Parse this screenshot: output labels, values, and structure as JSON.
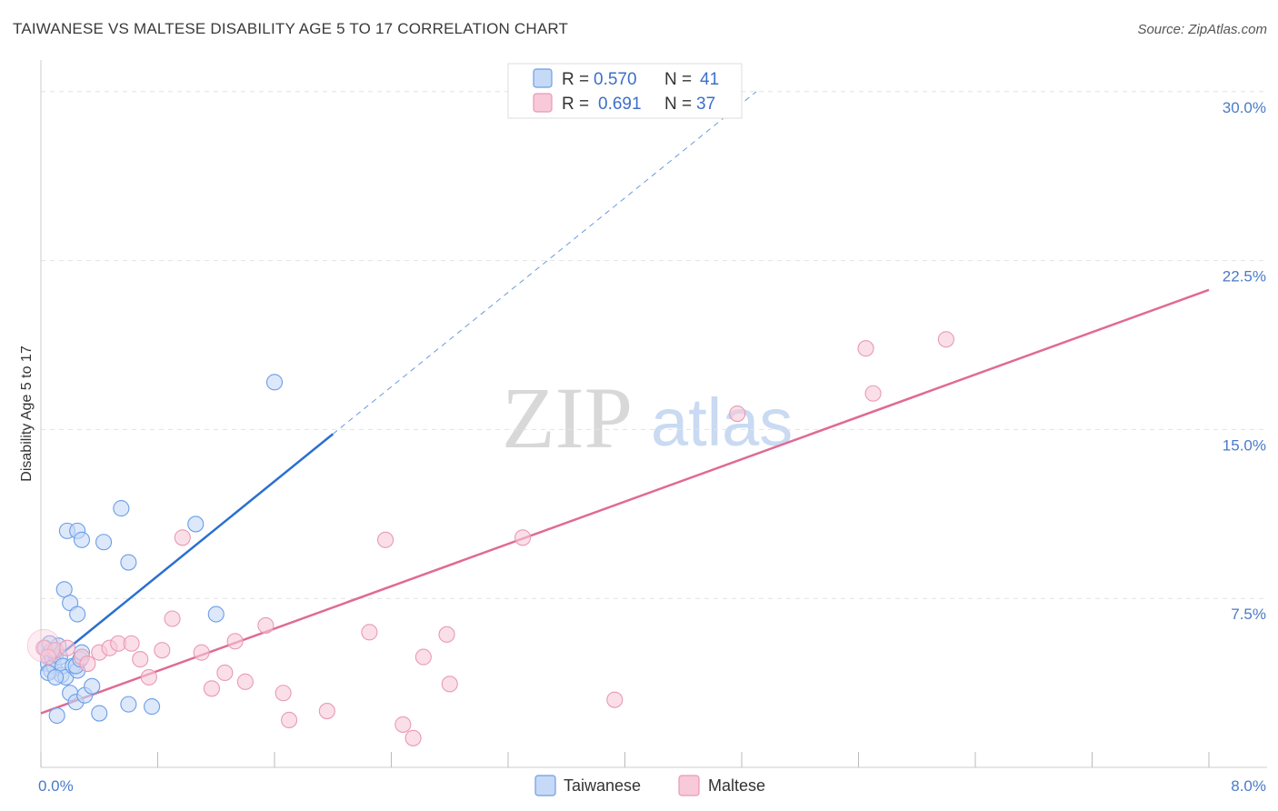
{
  "title": "TAIWANESE VS MALTESE DISABILITY AGE 5 TO 17 CORRELATION CHART",
  "source": "Source: ZipAtlas.com",
  "watermark": {
    "zip": "ZIP",
    "atlas": "atlas"
  },
  "chart_data": {
    "type": "scatter",
    "ylabel": "Disability Age 5 to 17",
    "xlim": [
      0,
      8
    ],
    "ylim": [
      0,
      31
    ],
    "x_tick_labels": [
      {
        "value": 0,
        "label": "0.0%"
      },
      {
        "value": 8,
        "label": "8.0%"
      }
    ],
    "y_tick_labels": [
      {
        "value": 7.5,
        "label": "7.5%"
      },
      {
        "value": 15.0,
        "label": "15.0%"
      },
      {
        "value": 22.5,
        "label": "22.5%"
      },
      {
        "value": 30.0,
        "label": "30.0%"
      }
    ],
    "legend": {
      "rows": [
        {
          "r_label": "R =",
          "r_value": "0.570",
          "n_label": "N =",
          "n_value": "41"
        },
        {
          "r_label": "R =",
          "r_value": "0.691",
          "n_label": "N =",
          "n_value": "37"
        }
      ]
    },
    "series": [
      {
        "name": "Taiwanese",
        "color": "#6a9ee8",
        "fill": "#c6d9f6",
        "line_color": "#2a6fd1",
        "trend": {
          "x0": 0.0,
          "y0": 4.3,
          "x1": 2.0,
          "y1": 14.8,
          "x_ext": 4.9,
          "y_ext": 30.0
        },
        "points": [
          [
            0.03,
            5.3
          ],
          [
            0.05,
            4.6
          ],
          [
            0.06,
            5.1
          ],
          [
            0.07,
            4.3
          ],
          [
            0.08,
            4.8
          ],
          [
            0.09,
            4.5
          ],
          [
            0.1,
            5.0
          ],
          [
            0.11,
            2.3
          ],
          [
            0.12,
            5.4
          ],
          [
            0.13,
            4.9
          ],
          [
            0.14,
            4.1
          ],
          [
            0.15,
            4.5
          ],
          [
            0.16,
            7.9
          ],
          [
            0.17,
            4.0
          ],
          [
            0.18,
            10.5
          ],
          [
            0.2,
            3.3
          ],
          [
            0.22,
            4.5
          ],
          [
            0.2,
            7.3
          ],
          [
            0.24,
            2.9
          ],
          [
            0.25,
            4.3
          ],
          [
            0.24,
            4.5
          ],
          [
            0.25,
            6.8
          ],
          [
            0.25,
            10.5
          ],
          [
            0.27,
            4.8
          ],
          [
            0.28,
            5.1
          ],
          [
            0.28,
            10.1
          ],
          [
            0.3,
            3.2
          ],
          [
            0.35,
            3.6
          ],
          [
            0.4,
            2.4
          ],
          [
            0.43,
            10.0
          ],
          [
            0.55,
            11.5
          ],
          [
            0.6,
            9.1
          ],
          [
            0.6,
            2.8
          ],
          [
            0.76,
            2.7
          ],
          [
            1.06,
            10.8
          ],
          [
            1.2,
            6.8
          ],
          [
            1.6,
            17.1
          ],
          [
            0.05,
            4.2
          ],
          [
            0.08,
            5.2
          ],
          [
            0.1,
            4.0
          ],
          [
            0.06,
            5.5
          ]
        ]
      },
      {
        "name": "Maltese",
        "color": "#e89ab4",
        "fill": "#f8c9d8",
        "line_color": "#e06a94",
        "trend": {
          "x0": 0.0,
          "y0": 2.4,
          "x1": 8.0,
          "y1": 21.2
        },
        "points": [
          [
            0.02,
            5.3
          ],
          [
            0.1,
            5.2
          ],
          [
            0.18,
            5.3
          ],
          [
            0.28,
            4.9
          ],
          [
            0.32,
            4.6
          ],
          [
            0.4,
            5.1
          ],
          [
            0.47,
            5.3
          ],
          [
            0.53,
            5.5
          ],
          [
            0.62,
            5.5
          ],
          [
            0.68,
            4.8
          ],
          [
            0.74,
            4.0
          ],
          [
            0.83,
            5.2
          ],
          [
            0.9,
            6.6
          ],
          [
            0.97,
            10.2
          ],
          [
            1.1,
            5.1
          ],
          [
            1.17,
            3.5
          ],
          [
            1.26,
            4.2
          ],
          [
            1.33,
            5.6
          ],
          [
            1.4,
            3.8
          ],
          [
            1.54,
            6.3
          ],
          [
            1.66,
            3.3
          ],
          [
            1.7,
            2.1
          ],
          [
            1.96,
            2.5
          ],
          [
            2.25,
            6.0
          ],
          [
            2.36,
            10.1
          ],
          [
            2.48,
            1.9
          ],
          [
            2.55,
            1.3
          ],
          [
            2.62,
            4.9
          ],
          [
            2.78,
            5.9
          ],
          [
            2.8,
            3.7
          ],
          [
            3.3,
            10.2
          ],
          [
            3.93,
            3.0
          ],
          [
            4.77,
            15.7
          ],
          [
            5.65,
            18.6
          ],
          [
            5.7,
            16.6
          ],
          [
            6.2,
            19.0
          ],
          [
            0.05,
            4.9
          ]
        ]
      }
    ]
  }
}
